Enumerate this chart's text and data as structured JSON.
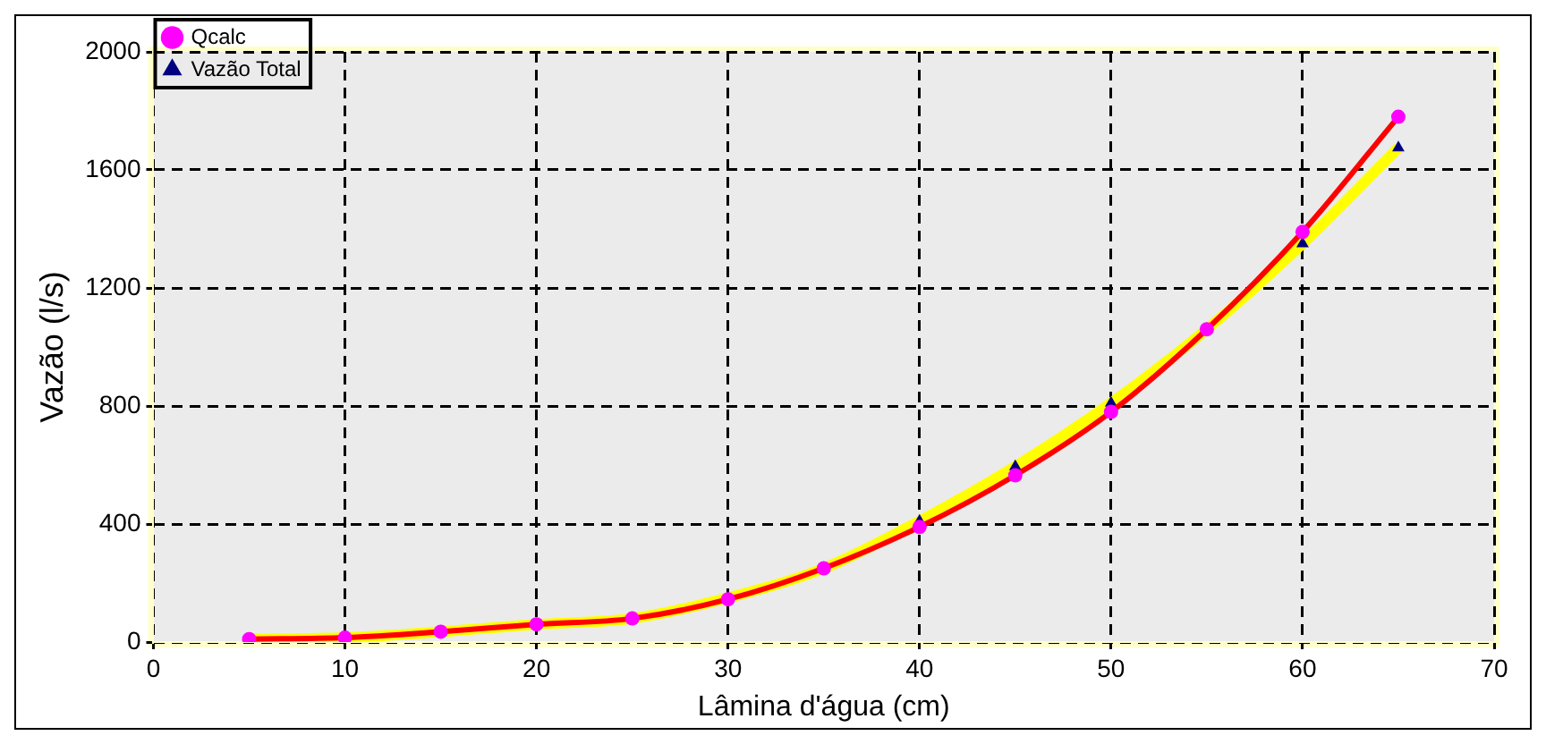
{
  "chart_data": {
    "type": "line",
    "xlabel": "Lâmina d'água (cm)",
    "ylabel": "Vazão (l/s)",
    "x": [
      5,
      10,
      15,
      20,
      25,
      30,
      35,
      40,
      45,
      50,
      55,
      60,
      65
    ],
    "series": [
      {
        "name": "Vazão Total",
        "color": "#ffff00",
        "marker": "triangle",
        "values": [
          10,
          15,
          35,
          60,
          80,
          150,
          250,
          410,
          595,
          810,
          1060,
          1350,
          1675
        ]
      },
      {
        "name": "Qcalc",
        "color": "#ff0000",
        "marker": "circle",
        "values": [
          10,
          15,
          35,
          60,
          80,
          145,
          250,
          390,
          565,
          780,
          1060,
          1390,
          1780
        ]
      }
    ],
    "xlim": [
      0,
      70
    ],
    "xticks": [
      0,
      10,
      20,
      30,
      40,
      50,
      60,
      70
    ],
    "ylim": [
      0,
      2000
    ],
    "yticks": [
      0,
      400,
      800,
      1200,
      1600,
      2000
    ],
    "grid": true,
    "legend": "top left",
    "line_style": "solid"
  }
}
